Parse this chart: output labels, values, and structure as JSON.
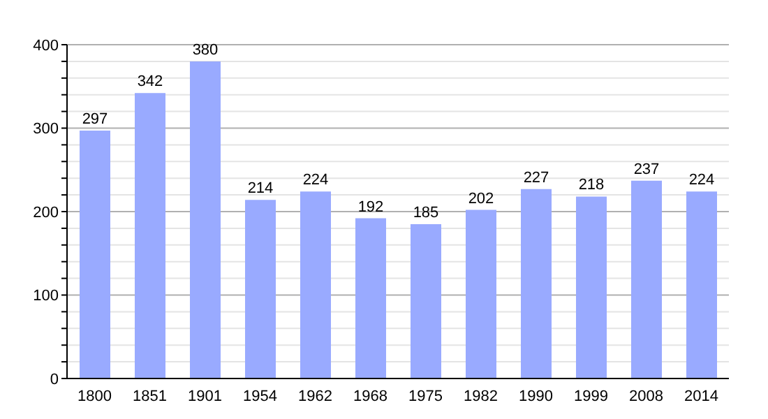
{
  "chart_data": {
    "type": "bar",
    "categories": [
      "1800",
      "1851",
      "1901",
      "1954",
      "1962",
      "1968",
      "1975",
      "1982",
      "1990",
      "1999",
      "2008",
      "2014"
    ],
    "values": [
      297,
      342,
      380,
      214,
      224,
      192,
      185,
      202,
      227,
      218,
      237,
      224
    ],
    "color": "#99aaff",
    "data_labels": true,
    "grid": "y",
    "ylim": [
      0,
      400
    ],
    "yticks": [
      0,
      {
        "value": 20,
        "label": null
      },
      {
        "value": 40,
        "label": null
      },
      {
        "value": 60,
        "label": null
      },
      {
        "value": 80,
        "label": null
      },
      100,
      {
        "value": 120,
        "label": null
      },
      {
        "value": 140,
        "label": null
      },
      {
        "value": 160,
        "label": null
      },
      {
        "value": 180,
        "label": null
      },
      200,
      {
        "value": 220,
        "label": null
      },
      {
        "value": 240,
        "label": null
      },
      {
        "value": 260,
        "label": null
      },
      {
        "value": 280,
        "label": null
      },
      300,
      {
        "value": 320,
        "label": null
      },
      {
        "value": 340,
        "label": null
      },
      {
        "value": 360,
        "label": null
      },
      {
        "value": 380,
        "label": null
      },
      400
    ]
  }
}
